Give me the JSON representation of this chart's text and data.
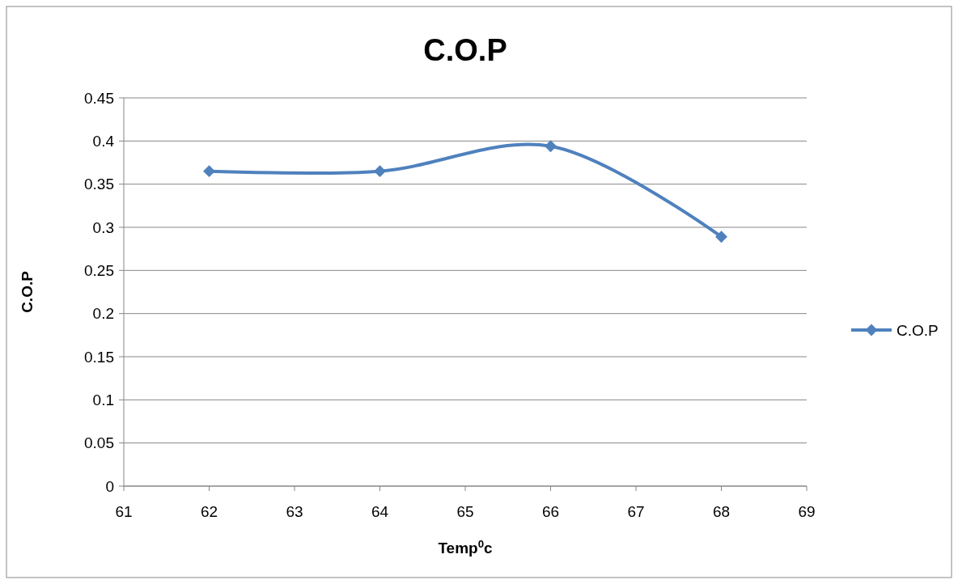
{
  "chart_data": {
    "type": "line",
    "title": "C.O.P",
    "xlabel": "Temp$^{0}$c",
    "ylabel": "C.O.P",
    "x": [
      62,
      64,
      66,
      68
    ],
    "series": [
      {
        "name": "C.O.P",
        "color": "#4f81bd",
        "values": [
          0.365,
          0.365,
          0.394,
          0.289
        ]
      }
    ],
    "xlim": [
      61,
      69
    ],
    "xticks": [
      61,
      62,
      63,
      64,
      65,
      66,
      67,
      68,
      69
    ],
    "ylim": [
      0,
      0.45
    ],
    "yticks": [
      0,
      0.05,
      0.1,
      0.15,
      0.2,
      0.25,
      0.3,
      0.35,
      0.4,
      0.45
    ],
    "grid": "y",
    "legend": "right",
    "marker": "diamond",
    "line_style": "solid"
  }
}
